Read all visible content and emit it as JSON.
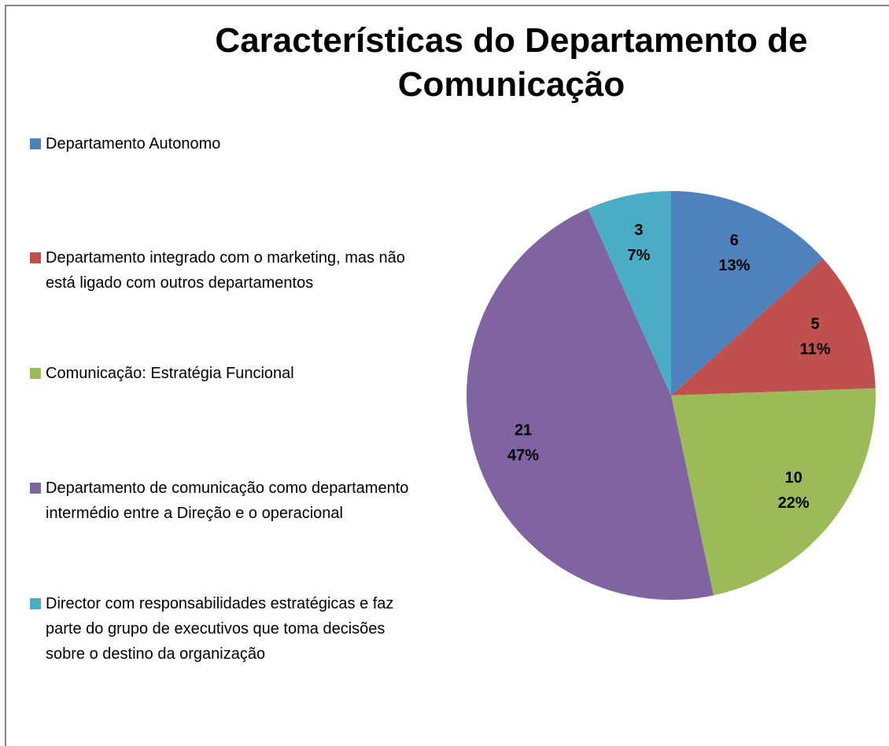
{
  "chart_data": {
    "type": "pie",
    "title": "Características do Departamento de Comunicação",
    "categories": [
      "Departamento Autonomo",
      "Departamento integrado com o marketing, mas não está ligado com outros departamentos",
      "Comunicação: Estratégia Funcional",
      "Departamento de comunicação como departamento intermédio entre a Direção e o operacional",
      "Director com responsabilidades estratégicas e faz parte do grupo de executivos que toma decisões sobre o destino da organização"
    ],
    "values": [
      6,
      5,
      10,
      21,
      3
    ],
    "percent_labels": [
      "13%",
      "11%",
      "22%",
      "47%",
      "7%"
    ],
    "colors": [
      "#4f81bd",
      "#c0504d",
      "#9bbb59",
      "#8064a2",
      "#4bacc6"
    ],
    "legend": "left"
  }
}
